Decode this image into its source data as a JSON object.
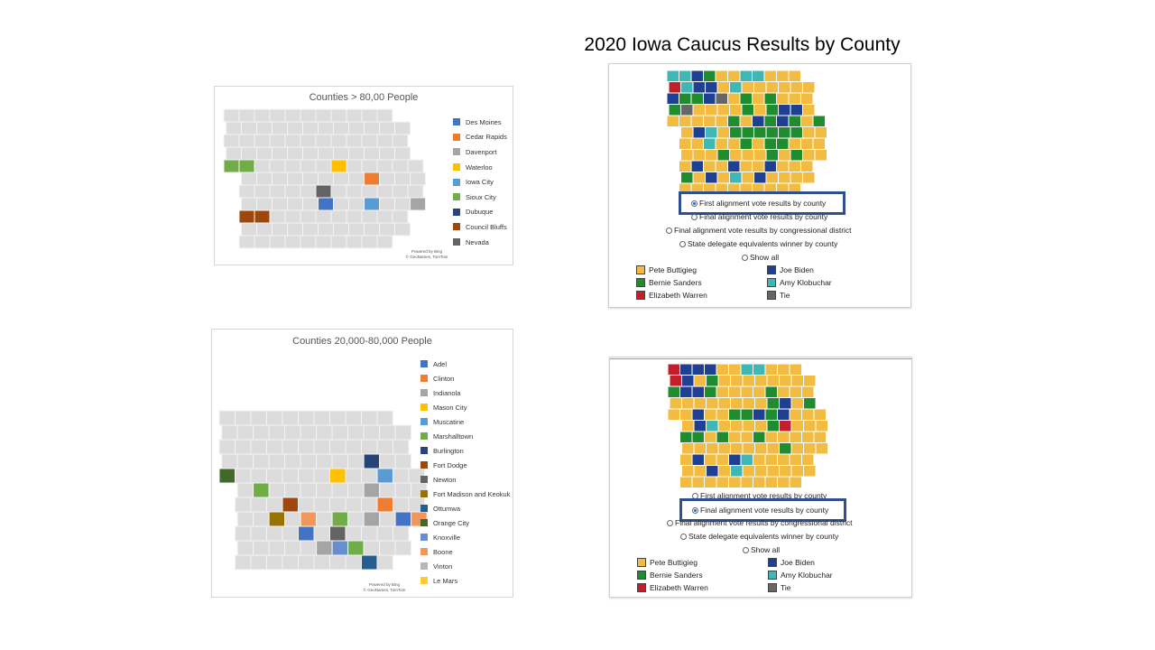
{
  "title": "2020 Iowa Caucus Results by County",
  "colors": {
    "county_gray": "#dcdcdc",
    "Pete Buttigieg": "#f2bb42",
    "Joe Biden": "#1f3f93",
    "Bernie Sanders": "#1f8c2f",
    "Amy Klobuchar": "#3fb7b5",
    "Elizabeth Warren": "#c21f2a",
    "Tie": "#666666"
  },
  "map_large": {
    "title": "Counties > 80,00 People",
    "credit": [
      "Powered by Bing",
      "© GeoNames, TomTom"
    ],
    "legend": [
      {
        "label": "Des Moines",
        "color": "#4472c4"
      },
      {
        "label": "Cedar Rapids",
        "color": "#ed7d31"
      },
      {
        "label": "Davenport",
        "color": "#a5a5a5"
      },
      {
        "label": "Waterloo",
        "color": "#ffc000"
      },
      {
        "label": "Iowa City",
        "color": "#5b9bd5"
      },
      {
        "label": "Sioux City",
        "color": "#70ad47"
      },
      {
        "label": "Dubuque",
        "color": "#264478"
      },
      {
        "label": "Council Bluffs",
        "color": "#9e480e"
      },
      {
        "label": "Nevada",
        "color": "#636363"
      }
    ]
  },
  "map_mid": {
    "title": "Counties 20,000-80,000 People",
    "credit": [
      "Powered by Bing",
      "© GeoNames, TomTom"
    ],
    "legend": [
      {
        "label": "Adel",
        "color": "#4472c4"
      },
      {
        "label": "Clinton",
        "color": "#ed7d31"
      },
      {
        "label": "Indianola",
        "color": "#a5a5a5"
      },
      {
        "label": "Mason City",
        "color": "#ffc000"
      },
      {
        "label": "Muscatine",
        "color": "#5b9bd5"
      },
      {
        "label": "Marshalltown",
        "color": "#70ad47"
      },
      {
        "label": "Burlington",
        "color": "#264478"
      },
      {
        "label": "Fort Dodge",
        "color": "#9e480e"
      },
      {
        "label": "Newton",
        "color": "#636363"
      },
      {
        "label": "Fort Madison and Keokuk",
        "color": "#997300"
      },
      {
        "label": "Ottumwa",
        "color": "#255e91"
      },
      {
        "label": "Orange City",
        "color": "#43682b"
      },
      {
        "label": "Knoxville",
        "color": "#698ed0"
      },
      {
        "label": "Boone",
        "color": "#f1975a"
      },
      {
        "label": "Vinton",
        "color": "#b7b7b7"
      },
      {
        "label": "Le Mars",
        "color": "#ffcd33"
      }
    ]
  },
  "result_first": {
    "options": [
      {
        "label": "First alignment vote results by county",
        "selected": true
      },
      {
        "label": "Final alignment vote results by county",
        "selected": false
      },
      {
        "label": "Final alignment vote results by congressional district",
        "selected": false
      },
      {
        "label": "State delegate equivalents winner by county",
        "selected": false
      },
      {
        "label": "Show all",
        "selected": false
      }
    ],
    "candidates": [
      "Pete Buttigieg",
      "Joe Biden",
      "Bernie Sanders",
      "Amy Klobuchar",
      "Elizabeth Warren",
      "Tie"
    ]
  },
  "result_final": {
    "options": [
      {
        "label": "First alignment vote results by county",
        "selected": false
      },
      {
        "label": "Final alignment vote results by county",
        "selected": true
      },
      {
        "label": "Final alignment vote results by congressional district",
        "selected": false
      },
      {
        "label": "State delegate equivalents winner by county",
        "selected": false
      },
      {
        "label": "Show all",
        "selected": false
      }
    ],
    "candidates": [
      "Pete Buttigieg",
      "Joe Biden",
      "Bernie Sanders",
      "Amy Klobuchar",
      "Elizabeth Warren",
      "Tie"
    ]
  }
}
